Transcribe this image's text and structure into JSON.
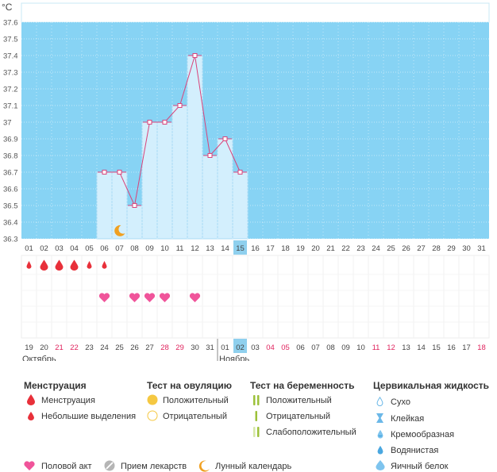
{
  "chart_data": {
    "type": "line",
    "ylabel": "°C",
    "ylim": [
      36.3,
      37.6
    ],
    "y_ticks": [
      "37.6",
      "37.5",
      "37.4",
      "37.3",
      "37.2",
      "37.1",
      "37",
      "36.9",
      "36.8",
      "36.7",
      "36.6",
      "36.5",
      "36.4",
      "36.3"
    ],
    "cycle_days": [
      "01",
      "02",
      "03",
      "04",
      "05",
      "06",
      "07",
      "08",
      "09",
      "10",
      "11",
      "12",
      "13",
      "14",
      "15",
      "16",
      "17",
      "18",
      "19",
      "20",
      "21",
      "22",
      "23",
      "24",
      "25",
      "26",
      "27",
      "28",
      "29",
      "30",
      "31"
    ],
    "current_day": "15",
    "series": [
      {
        "values": [
          null,
          null,
          null,
          null,
          null,
          36.7,
          36.7,
          36.5,
          37.0,
          37.0,
          37.1,
          37.4,
          36.8,
          36.9,
          36.7,
          null,
          null,
          null,
          null,
          null,
          null,
          null,
          null,
          null,
          null,
          null,
          null,
          null,
          null,
          null,
          null
        ]
      }
    ],
    "menstruation": [
      {
        "day": "01",
        "kind": "light"
      },
      {
        "day": "02",
        "kind": "heavy"
      },
      {
        "day": "03",
        "kind": "heavy"
      },
      {
        "day": "04",
        "kind": "heavy"
      },
      {
        "day": "05",
        "kind": "light"
      },
      {
        "day": "06",
        "kind": "light"
      }
    ],
    "intercourse_days": [
      "06",
      "08",
      "09",
      "10",
      "12"
    ],
    "moon_days": [
      "07"
    ],
    "dates": [
      {
        "label": "19",
        "weekend": false
      },
      {
        "label": "20",
        "weekend": false
      },
      {
        "label": "21",
        "weekend": true
      },
      {
        "label": "22",
        "weekend": true
      },
      {
        "label": "23",
        "weekend": false
      },
      {
        "label": "24",
        "weekend": false
      },
      {
        "label": "25",
        "weekend": false
      },
      {
        "label": "26",
        "weekend": false
      },
      {
        "label": "27",
        "weekend": false
      },
      {
        "label": "28",
        "weekend": true
      },
      {
        "label": "29",
        "weekend": true
      },
      {
        "label": "30",
        "weekend": false
      },
      {
        "label": "31",
        "weekend": false
      },
      {
        "label": "01",
        "weekend": false
      },
      {
        "label": "02",
        "weekend": false
      },
      {
        "label": "03",
        "weekend": false
      },
      {
        "label": "04",
        "weekend": true
      },
      {
        "label": "05",
        "weekend": true
      },
      {
        "label": "06",
        "weekend": false
      },
      {
        "label": "07",
        "weekend": false
      },
      {
        "label": "08",
        "weekend": false
      },
      {
        "label": "09",
        "weekend": false
      },
      {
        "label": "10",
        "weekend": false
      },
      {
        "label": "11",
        "weekend": true
      },
      {
        "label": "12",
        "weekend": true
      },
      {
        "label": "13",
        "weekend": false
      },
      {
        "label": "14",
        "weekend": false
      },
      {
        "label": "15",
        "weekend": false
      },
      {
        "label": "16",
        "weekend": false
      },
      {
        "label": "17",
        "weekend": false
      },
      {
        "label": "18",
        "weekend": true
      }
    ],
    "months": [
      {
        "label": "Октябрь",
        "start_index": 0
      },
      {
        "label": "Ноябрь",
        "start_index": 13
      }
    ],
    "colors": {
      "band": "#87d3f4",
      "bar": "#d3effd",
      "bar_border": "#a8dbf5",
      "line": "#d9437a",
      "highlight": "#8fd0ee",
      "weekend": "#e0245e",
      "drop": "#e8303a",
      "heart": "#f0549a",
      "moon": "#f0a020"
    }
  },
  "legend": {
    "menstruation": {
      "title": "Менструация",
      "items": [
        "Менструация",
        "Небольшие выделения"
      ]
    },
    "ovulation": {
      "title": "Тест на овуляцию",
      "items": [
        "Положительный",
        "Отрицательный"
      ]
    },
    "pregnancy": {
      "title": "Тест на беременность",
      "items": [
        "Положительный",
        "Отрицательный",
        "Слабоположительный"
      ]
    },
    "cervical": {
      "title": "Цервикальная жидкость",
      "items": [
        "Сухо",
        "Клейкая",
        "Кремообразная",
        "Водянистая",
        "Яичный белок"
      ]
    },
    "bottom": [
      "Половой акт",
      "Прием лекарств",
      "Лунный календарь"
    ]
  }
}
